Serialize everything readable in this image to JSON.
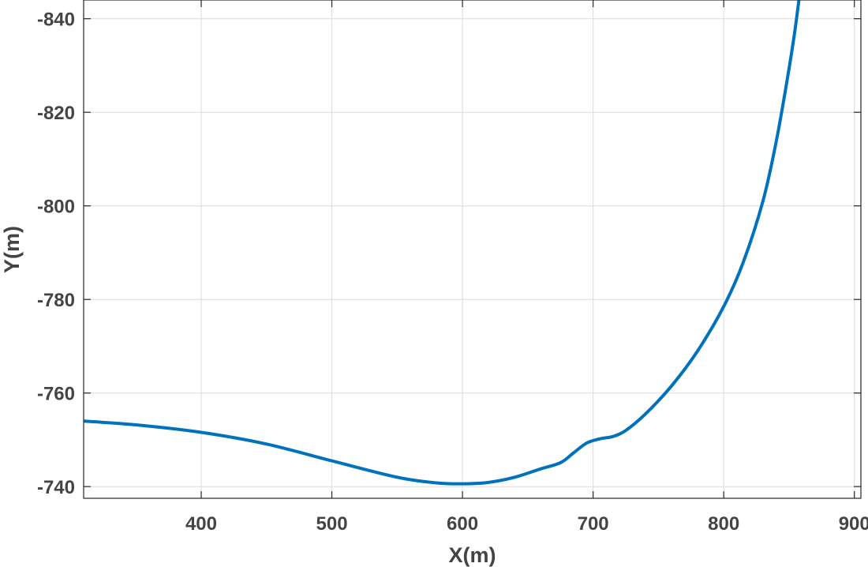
{
  "chart_data": {
    "type": "line",
    "title": "",
    "xlabel": "X(m)",
    "ylabel": "Y(m)",
    "xlim": [
      310,
      905
    ],
    "ylim": [
      -737.5,
      -844
    ],
    "y_axis_reversed": true,
    "grid": true,
    "x_ticks": [
      400,
      500,
      600,
      700,
      800,
      900
    ],
    "y_ticks": [
      -840,
      -820,
      -800,
      -780,
      -760,
      -740
    ],
    "x_tick_labels": [
      "400",
      "500",
      "600",
      "700",
      "800",
      "900"
    ],
    "y_tick_labels": [
      "-840",
      "-820",
      "-800",
      "-780",
      "-760",
      "-740"
    ],
    "series": [
      {
        "color": "#0072bd",
        "x": [
          310,
          350,
          400,
          450,
          500,
          550,
          580,
          600,
          620,
          640,
          660,
          675,
          685,
          695,
          705,
          715,
          725,
          740,
          760,
          780,
          800,
          815,
          830,
          840,
          848,
          854,
          858
        ],
        "y": [
          -754.0,
          -753.2,
          -751.6,
          -749.1,
          -745.5,
          -742.0,
          -740.8,
          -740.6,
          -740.9,
          -742.0,
          -743.8,
          -745.1,
          -747.2,
          -749.3,
          -750.2,
          -750.7,
          -752.0,
          -755.5,
          -761.5,
          -769.0,
          -778.5,
          -788.0,
          -801.0,
          -813.5,
          -826.0,
          -836.5,
          -845.0
        ]
      }
    ]
  }
}
